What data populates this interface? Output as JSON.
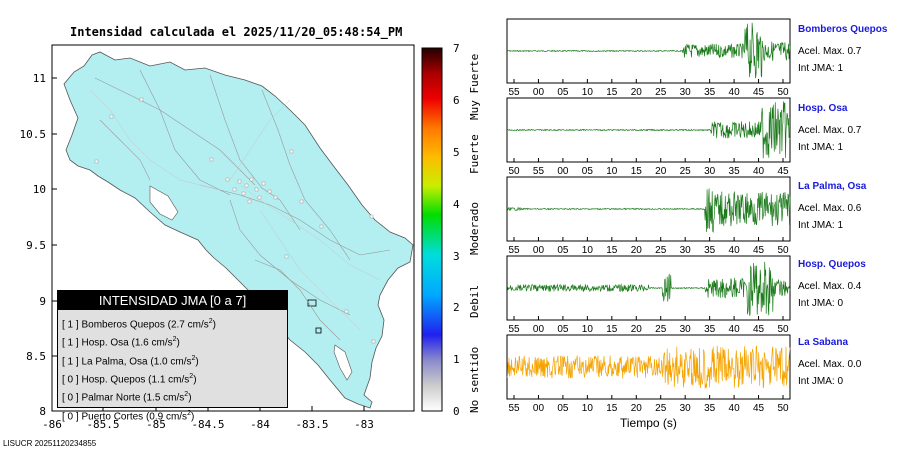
{
  "map": {
    "title": "Intensidad calculada el 2025/11/20_05:48:54_PM",
    "x_ticks": [
      "-86",
      "-85.5",
      "-85",
      "-84.5",
      "-84",
      "-83.5",
      "-83"
    ],
    "y_ticks": [
      "11",
      "10.5",
      "10",
      "9.5",
      "9",
      "8.5",
      "8"
    ],
    "land_color": "#b3eef0"
  },
  "intensity_scale": {
    "ticks": [
      "0",
      "1",
      "2",
      "3",
      "4",
      "5",
      "6",
      "7"
    ],
    "labels": [
      "No sentido",
      "Debil",
      "Moderado",
      "Fuerte",
      "Muy Fuerte"
    ]
  },
  "legend": {
    "header": "INTENSIDAD JMA [0 a 7]",
    "entries": [
      {
        "level": "[ 1 ]",
        "text": "Bomberos Quepos (2.7 cm/s",
        "sup": "2",
        "close": ")"
      },
      {
        "level": "[ 1 ]",
        "text": "Hosp. Osa (1.6 cm/s",
        "sup": "2",
        "close": ")"
      },
      {
        "level": "[ 1 ]",
        "text": "La Palma, Osa (1.0 cm/s",
        "sup": "2",
        "close": ")"
      },
      {
        "level": "[ 0 ]",
        "text": "Hosp. Quepos (1.1 cm/s",
        "sup": "2",
        "close": ")"
      },
      {
        "level": "[ 0 ]",
        "text": "Palmar Norte (1.5 cm/s",
        "sup": "2",
        "close": ")"
      },
      {
        "level": "[ 0 ]",
        "text": "Puerto Cortes (0.9 cm/s",
        "sup": "2",
        "close": ")"
      }
    ]
  },
  "footer_id": "LISUCR 20251120234855",
  "stations": [
    {
      "name": "Bomberos Quepos",
      "accel": "Acel. Max. 0.7",
      "int": "Int JMA: 1",
      "color": "#1a7a1a",
      "ticks": [
        "55",
        "00",
        "05",
        "10",
        "15",
        "20",
        "25",
        "30",
        "35",
        "40",
        "45",
        "50"
      ]
    },
    {
      "name": "Hosp. Osa",
      "accel": "Acel. Max. 0.7",
      "int": "Int JMA: 1",
      "color": "#1a7a1a",
      "ticks": [
        "50",
        "55",
        "00",
        "05",
        "10",
        "15",
        "20",
        "25",
        "30",
        "35",
        "40",
        "45"
      ]
    },
    {
      "name": "La Palma, Osa",
      "accel": "Acel. Max. 0.6",
      "int": "Int JMA: 1",
      "color": "#1a7a1a",
      "ticks": [
        "55",
        "00",
        "05",
        "10",
        "15",
        "20",
        "25",
        "30",
        "35",
        "40",
        "45",
        "50"
      ]
    },
    {
      "name": "Hosp. Quepos",
      "accel": "Acel. Max. 0.4",
      "int": "Int JMA: 0",
      "color": "#1a7a1a",
      "ticks": [
        "55",
        "00",
        "05",
        "10",
        "15",
        "20",
        "25",
        "30",
        "35",
        "40",
        "45",
        "50"
      ]
    },
    {
      "name": "La Sabana",
      "accel": "Acel. Max. 0.0",
      "int": "Int JMA: 0",
      "color": "#f5a300",
      "ticks": [
        "55",
        "00",
        "05",
        "10",
        "15",
        "20",
        "25",
        "30",
        "35",
        "40",
        "45",
        "50"
      ]
    }
  ],
  "time_axis_label": "Tiempo (s)",
  "chart_data": [
    {
      "type": "map",
      "title": "Intensidad calculada el 2025/11/20_05:48:54_PM",
      "xlim": [
        -86,
        -82.55
      ],
      "ylim": [
        8,
        11.35
      ]
    },
    {
      "type": "line",
      "series": [
        {
          "name": "Bomberos Quepos"
        },
        {
          "name": "Hosp. Osa"
        },
        {
          "name": "La Palma, Osa"
        },
        {
          "name": "Hosp. Quepos"
        },
        {
          "name": "La Sabana"
        }
      ],
      "xlabel": "Tiempo (s)"
    }
  ]
}
